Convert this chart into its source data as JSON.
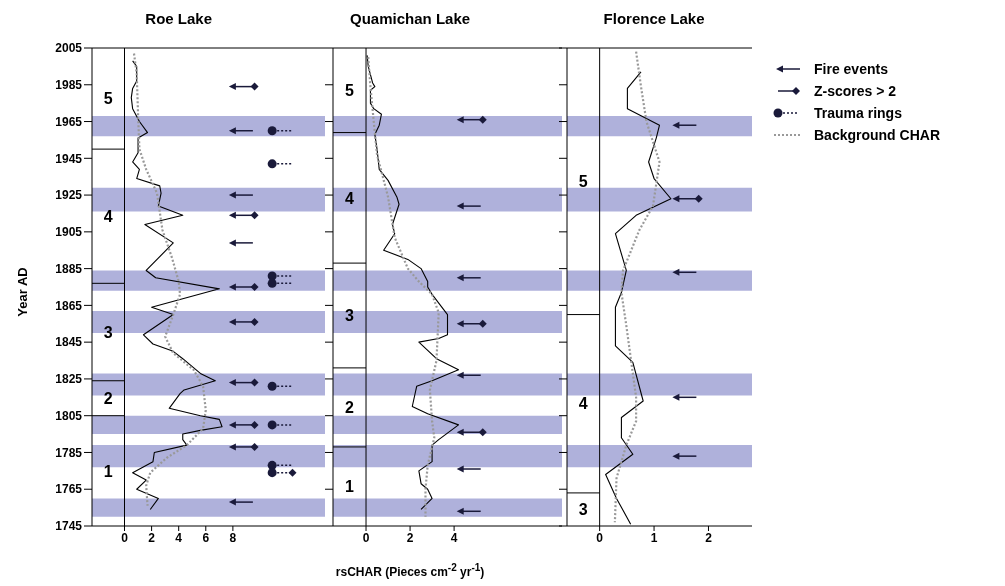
{
  "chart_data": [
    {
      "type": "line",
      "title": "Roe Lake",
      "ylabel": "Year AD",
      "xlim": [
        -2.4,
        14.8
      ],
      "xticks": [
        0,
        2,
        4,
        6,
        8
      ],
      "ylim": [
        1745,
        2005
      ],
      "yticks": [
        1745,
        1765,
        1785,
        1805,
        1825,
        1845,
        1865,
        1885,
        1905,
        1925,
        1945,
        1965,
        1985,
        2005
      ],
      "legend": "top right",
      "series": [
        {
          "color": "#000000",
          "x": [
            0.6,
            0.9,
            0.9,
            0.6,
            0.5,
            0.6,
            1.1,
            1.7,
            1.0,
            1.0,
            0.6,
            1.1,
            0.9,
            2.6,
            2.7,
            2.5,
            4.3,
            1.5,
            3.6,
            1.6,
            2.3,
            7.0,
            2.0,
            3.6,
            1.4,
            2.1,
            3.6,
            4.3,
            5.6,
            6.7,
            4.4,
            4.1,
            3.3,
            5.6,
            7.0,
            7.2,
            5.6,
            4.3,
            4.3,
            4.6,
            2.2,
            2.1,
            0.6,
            1.6,
            0.9,
            2.5,
            1.9
          ],
          "values": [
            1998,
            1995,
            1987,
            1983,
            1978,
            1972,
            1965,
            1959,
            1956,
            1948,
            1943,
            1939,
            1934,
            1930,
            1926,
            1919,
            1914,
            1909,
            1899,
            1884,
            1880,
            1874,
            1864,
            1860,
            1849,
            1844,
            1840,
            1836,
            1828,
            1824,
            1819,
            1817,
            1809,
            1805,
            1803,
            1799,
            1797,
            1795,
            1792,
            1789,
            1785,
            1780,
            1774,
            1770,
            1765,
            1760,
            1754
          ]
        },
        {
          "name": "Fire events",
          "type": "scatter",
          "color": "#1a1a3a",
          "x": [
            8.0,
            8.0,
            8.0,
            8.0,
            8.0,
            8.0,
            8.0,
            8.0,
            8.0,
            8.0,
            8.0
          ],
          "values": [
            1984,
            1960,
            1925,
            1914,
            1899,
            1875,
            1856,
            1823,
            1800,
            1788,
            1758
          ]
        },
        {
          "name": "Z-scores > 2",
          "type": "scatter",
          "marker": "diamond",
          "color": "#1a1a3a",
          "x": [
            9.6,
            9.6,
            9.6,
            9.6,
            9.6,
            9.6,
            9.6,
            12.4
          ],
          "values": [
            1984,
            1914,
            1875,
            1856,
            1823,
            1800,
            1788,
            1774
          ]
        },
        {
          "name": "Trauma rings",
          "type": "scatter",
          "marker": "circle",
          "color": "#1a1a3a",
          "x": [
            10.9,
            10.9,
            10.9,
            10.9,
            10.9,
            10.9,
            10.9,
            10.9
          ],
          "values": [
            1960,
            1942,
            1881,
            1877,
            1821,
            1800,
            1778,
            1774
          ]
        },
        {
          "name": "Background CHAR",
          "line_style": "dotted",
          "color": "#999999",
          "x": [
            0.7,
            0.9,
            1.0,
            1.1,
            1.6,
            2.4,
            2.8,
            3.5,
            4.0,
            4.1,
            3.6,
            3.0,
            3.6,
            5.1,
            5.8,
            6.0,
            5.8,
            4.6,
            3.1,
            1.9,
            1.6,
            1.7
          ],
          "values": [
            2002,
            1991,
            1969,
            1950,
            1939,
            1926,
            1906,
            1891,
            1878,
            1871,
            1860,
            1848,
            1839,
            1830,
            1821,
            1808,
            1798,
            1789,
            1782,
            1774,
            1767,
            1756
          ]
        }
      ],
      "bands": [
        {
          "axis": "y",
          "from": 1957,
          "to": 1968,
          "color": "#afb1db"
        },
        {
          "axis": "y",
          "from": 1916,
          "to": 1929,
          "color": "#afb1db"
        },
        {
          "axis": "y",
          "from": 1873,
          "to": 1884,
          "color": "#afb1db"
        },
        {
          "axis": "y",
          "from": 1850,
          "to": 1862,
          "color": "#afb1db"
        },
        {
          "axis": "y",
          "from": 1816,
          "to": 1828,
          "color": "#afb1db"
        },
        {
          "axis": "y",
          "from": 1795,
          "to": 1805,
          "color": "#afb1db"
        },
        {
          "axis": "y",
          "from": 1777,
          "to": 1789,
          "color": "#afb1db"
        },
        {
          "axis": "y",
          "from": 1750,
          "to": 1760,
          "color": "#afb1db"
        }
      ],
      "ref_lines": [
        {
          "axis": "x",
          "value": 0
        },
        {
          "axis": "y",
          "value": 1950
        },
        {
          "axis": "y",
          "value": 1877
        },
        {
          "axis": "y",
          "value": 1824
        },
        {
          "axis": "y",
          "value": 1805
        }
      ],
      "annotations": [
        "5",
        "4",
        "3",
        "2",
        "1"
      ]
    },
    {
      "type": "line",
      "title": "Quamichan Lake",
      "xlabel": "rsCHAR (Pieces cm$^{-2}$ yr$^{-1}$)",
      "xlim": [
        -1.5,
        8.9
      ],
      "xticks": [
        0,
        2,
        4
      ],
      "ylim": [
        1745,
        2005
      ],
      "yticks": [
        1745,
        1765,
        1785,
        1805,
        1825,
        1845,
        1865,
        1885,
        1905,
        1925,
        1945,
        1965,
        1985,
        2005
      ],
      "tick_labels": "x",
      "series": [
        {
          "color": "#000000",
          "x": [
            0.05,
            0.1,
            0.3,
            0.4,
            0.2,
            0.2,
            0.35,
            0.7,
            0.6,
            0.4,
            0.5,
            0.6,
            1.0,
            1.4,
            1.5,
            1.2,
            1.3,
            0.8,
            1.9,
            2.5,
            2.8,
            2.8,
            3.0,
            3.7,
            3.7,
            3.3,
            2.4,
            3.2,
            4.2,
            3.0,
            2.3,
            2.1,
            2.8,
            4.2,
            3.3,
            3.0,
            3.0,
            2.4,
            2.5,
            2.8,
            3.0,
            2.5
          ],
          "values": [
            2001,
            1995,
            1986,
            1984,
            1982,
            1975,
            1972,
            1969,
            1963,
            1958,
            1950,
            1939,
            1933,
            1924,
            1920,
            1909,
            1904,
            1895,
            1890,
            1885,
            1878,
            1875,
            1871,
            1860,
            1849,
            1847,
            1845,
            1836,
            1830,
            1824,
            1821,
            1810,
            1806,
            1800,
            1792,
            1789,
            1780,
            1775,
            1768,
            1765,
            1760,
            1754
          ]
        },
        {
          "line_style": "dotted",
          "color": "#999999",
          "x": [
            0.1,
            0.2,
            0.35,
            0.5,
            1.0,
            1.3,
            1.9,
            2.4,
            3.0,
            3.3,
            3.2,
            2.9,
            3.0,
            3.1,
            2.8,
            2.7,
            2.7
          ],
          "values": [
            2000,
            1984,
            1965,
            1947,
            1924,
            1902,
            1885,
            1878,
            1871,
            1861,
            1835,
            1819,
            1802,
            1793,
            1778,
            1765,
            1750
          ]
        },
        {
          "type": "scatter",
          "color": "#1a1a3a",
          "x": [
            4.3,
            4.3,
            4.3,
            4.3,
            4.3,
            4.3,
            4.3,
            4.3
          ],
          "values": [
            1966,
            1919,
            1880,
            1855,
            1827,
            1796,
            1776,
            1753
          ]
        },
        {
          "type": "scatter",
          "marker": "diamond",
          "color": "#1a1a3a",
          "x": [
            5.3,
            5.3,
            5.3
          ],
          "values": [
            1966,
            1855,
            1796
          ]
        }
      ],
      "bands": [
        {
          "axis": "y",
          "from": 1957,
          "to": 1968,
          "color": "#afb1db"
        },
        {
          "axis": "y",
          "from": 1916,
          "to": 1929,
          "color": "#afb1db"
        },
        {
          "axis": "y",
          "from": 1873,
          "to": 1884,
          "color": "#afb1db"
        },
        {
          "axis": "y",
          "from": 1850,
          "to": 1862,
          "color": "#afb1db"
        },
        {
          "axis": "y",
          "from": 1816,
          "to": 1828,
          "color": "#afb1db"
        },
        {
          "axis": "y",
          "from": 1795,
          "to": 1805,
          "color": "#afb1db"
        },
        {
          "axis": "y",
          "from": 1777,
          "to": 1789,
          "color": "#afb1db"
        },
        {
          "axis": "y",
          "from": 1750,
          "to": 1760,
          "color": "#afb1db"
        }
      ],
      "ref_lines": [
        {
          "axis": "x",
          "value": 0
        },
        {
          "axis": "y",
          "value": 1959
        },
        {
          "axis": "y",
          "value": 1888
        },
        {
          "axis": "y",
          "value": 1831
        },
        {
          "axis": "y",
          "value": 1788
        }
      ],
      "annotations": [
        "5",
        "4",
        "3",
        "2",
        "1"
      ]
    },
    {
      "type": "line",
      "title": "Florence Lake",
      "xlim": [
        -0.6,
        2.8
      ],
      "xticks": [
        0,
        1,
        2
      ],
      "ylim": [
        1745,
        2005
      ],
      "yticks": [
        1745,
        1765,
        1785,
        1805,
        1825,
        1845,
        1865,
        1885,
        1905,
        1925,
        1945,
        1965,
        1985,
        2005
      ],
      "tick_labels": "x",
      "series": [
        {
          "color": "#000000",
          "x": [
            0.76,
            0.51,
            0.51,
            1.1,
            1.04,
            0.9,
            1.0,
            1.31,
            0.67,
            0.29,
            0.49,
            0.4,
            0.29,
            0.29,
            0.61,
            0.8,
            0.4,
            0.4,
            0.61,
            0.11,
            0.31,
            0.57
          ],
          "values": [
            1992,
            1983,
            1972,
            1963,
            1956,
            1943,
            1934,
            1923,
            1914,
            1904,
            1884,
            1872,
            1864,
            1843,
            1834,
            1813,
            1804,
            1793,
            1784,
            1773,
            1760,
            1746
          ]
        },
        {
          "line_style": "dotted",
          "color": "#999999",
          "x": [
            0.67,
            0.76,
            0.86,
            1.1,
            0.98,
            0.73,
            0.43,
            0.4,
            0.49,
            0.67,
            0.67,
            0.49,
            0.31,
            0.28
          ],
          "values": [
            2003,
            1984,
            1965,
            1943,
            1919,
            1906,
            1884,
            1872,
            1854,
            1815,
            1802,
            1789,
            1771,
            1747
          ]
        },
        {
          "type": "scatter",
          "color": "#1a1a3a",
          "x": [
            1.41,
            1.41,
            1.41,
            1.41,
            1.41
          ],
          "values": [
            1963,
            1923,
            1883,
            1815,
            1783
          ]
        },
        {
          "type": "scatter",
          "marker": "diamond",
          "color": "#1a1a3a",
          "x": [
            1.82
          ],
          "values": [
            1923
          ]
        }
      ],
      "bands": [
        {
          "axis": "y",
          "from": 1957,
          "to": 1968,
          "color": "#afb1db"
        },
        {
          "axis": "y",
          "from": 1916,
          "to": 1929,
          "color": "#afb1db"
        },
        {
          "axis": "y",
          "from": 1873,
          "to": 1884,
          "color": "#afb1db"
        },
        {
          "axis": "y",
          "from": 1816,
          "to": 1828,
          "color": "#afb1db"
        },
        {
          "axis": "y",
          "from": 1777,
          "to": 1789,
          "color": "#afb1db"
        }
      ],
      "ref_lines": [
        {
          "axis": "x",
          "value": 0
        },
        {
          "axis": "y",
          "value": 1860
        },
        {
          "axis": "y",
          "value": 1763
        }
      ],
      "annotations": [
        "5",
        "4",
        "3"
      ]
    }
  ]
}
